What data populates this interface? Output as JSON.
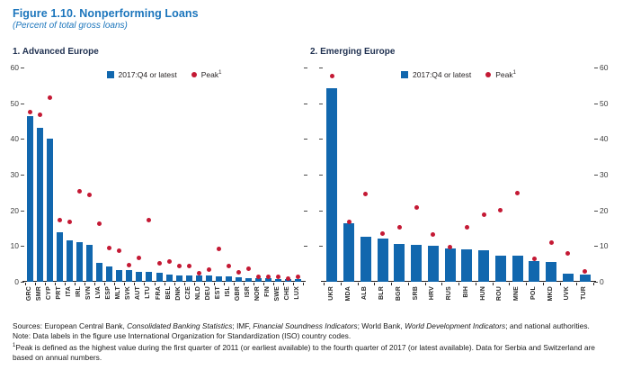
{
  "header": {
    "title": "Figure 1.10. Nonperforming Loans",
    "subtitle": "(Percent of total gross loans)"
  },
  "legend": {
    "bar_label": "2017:Q4 or latest",
    "peak_label": "Peak",
    "peak_sup": "1"
  },
  "colors": {
    "bar": "#1167AE",
    "peak": "#C41934",
    "title_blue": "#1B75BC",
    "panel_title": "#1F3050",
    "axis_text": "#3d3d3d",
    "baseline": "#231F20"
  },
  "chart_data": [
    {
      "type": "bar",
      "panel_title": "1. Advanced Europe",
      "ylabel": "",
      "xlabel": "",
      "ylim": [
        0,
        60
      ],
      "yticks": [
        0,
        10,
        20,
        30,
        40,
        50,
        60
      ],
      "axis_label_side": "left",
      "grid": false,
      "legend_position": "top-center",
      "categories": [
        "GRC",
        "SMR",
        "CYP",
        "PRT",
        "ITA",
        "IRL",
        "SVN",
        "LVA",
        "ESP",
        "MLT",
        "SVK",
        "AUT",
        "LTU",
        "FRA",
        "BEL",
        "DNK",
        "CZE",
        "NLD",
        "DEU",
        "EST",
        "ISL",
        "GBR",
        "ISR",
        "NOR",
        "FIN",
        "SWE",
        "CHE",
        "LUX"
      ],
      "series": [
        {
          "name": "2017:Q4 or latest",
          "marker": "bar",
          "values": [
            46.5,
            43.2,
            40.0,
            14.0,
            11.6,
            11.2,
            10.3,
            5.4,
            4.2,
            3.4,
            3.3,
            2.9,
            2.8,
            2.5,
            2.1,
            1.9,
            1.8,
            1.8,
            1.7,
            1.4,
            1.4,
            1.2,
            1.0,
            0.9,
            0.9,
            0.8,
            0.7,
            0.7
          ]
        },
        {
          "name": "Peak",
          "marker": "dot",
          "values": [
            47.5,
            46.8,
            51.5,
            17.3,
            16.8,
            25.3,
            24.3,
            16.3,
            9.4,
            8.7,
            4.8,
            6.8,
            17.4,
            5.3,
            5.8,
            4.3,
            4.3,
            2.5,
            3.5,
            9.1,
            4.5,
            2.7,
            3.7,
            1.4,
            1.4,
            1.3,
            1.0,
            1.3
          ]
        }
      ]
    },
    {
      "type": "bar",
      "panel_title": "2. Emerging Europe",
      "ylabel": "",
      "xlabel": "",
      "ylim": [
        0,
        60
      ],
      "yticks": [
        0,
        10,
        20,
        30,
        40,
        50,
        60
      ],
      "axis_label_side": "right",
      "grid": false,
      "legend_position": "top-center",
      "categories": [
        "UKR",
        "MDA",
        "ALB",
        "BLR",
        "BGR",
        "SRB",
        "HRV",
        "RUS",
        "BIH",
        "HUN",
        "ROU",
        "MNE",
        "POL",
        "MKD",
        "UVK",
        "TUR"
      ],
      "series": [
        {
          "name": "2017:Q4 or latest",
          "marker": "bar",
          "values": [
            54.2,
            16.3,
            12.6,
            12.0,
            10.6,
            10.3,
            10.1,
            9.3,
            9.1,
            8.8,
            7.4,
            7.3,
            5.8,
            5.6,
            2.3,
            2.0
          ]
        },
        {
          "name": "Peak",
          "marker": "dot",
          "values": [
            57.5,
            16.7,
            24.5,
            13.4,
            15.3,
            20.8,
            13.3,
            9.8,
            15.3,
            18.7,
            20.1,
            24.8,
            6.4,
            11.0,
            8.0,
            2.8
          ]
        }
      ]
    }
  ],
  "footnotes": {
    "sources_segments": [
      {
        "t": "Sources: European Central Bank, ",
        "i": false
      },
      {
        "t": "Consolidated Banking Statistics",
        "i": true
      },
      {
        "t": "; IMF, ",
        "i": false
      },
      {
        "t": "Financial Soundness Indicators",
        "i": true
      },
      {
        "t": "; World Bank, ",
        "i": false
      },
      {
        "t": "World Development Indicators",
        "i": true
      },
      {
        "t": "; and national authorities.",
        "i": false
      }
    ],
    "note": "Note: Data labels in the figure use International Organization for Standardization (ISO) country codes.",
    "footnote1_sup": "1",
    "footnote1": "Peak is defined as the highest value during the first quarter of 2011 (or earliest available) to the fourth quarter of 2017 (or latest available). Data for Serbia and Switzerland are based on annual numbers."
  }
}
